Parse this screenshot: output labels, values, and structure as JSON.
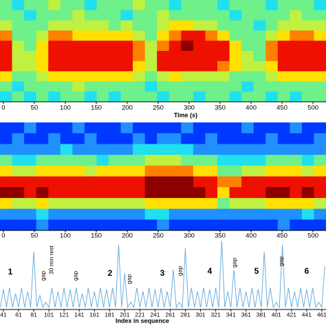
{
  "chart_data": [
    {
      "type": "heatmap",
      "colormap": "jet",
      "xlabel": "Time (s)",
      "xlim": [
        -5.5,
        521
      ],
      "xticks": [
        0,
        50,
        100,
        150,
        200,
        250,
        300,
        350,
        400,
        450,
        500
      ],
      "z": [
        [
          5,
          4,
          5,
          5,
          6,
          5,
          5,
          4,
          5,
          5,
          5,
          6,
          5,
          5,
          4,
          5,
          5,
          5,
          4,
          5,
          5,
          5,
          4,
          5,
          5,
          5,
          4
        ],
        [
          5,
          5,
          4,
          5,
          5,
          5,
          6,
          5,
          5,
          5,
          4,
          5,
          5,
          6,
          5,
          5,
          5,
          5,
          5,
          4,
          5,
          5,
          5,
          5,
          6,
          5,
          5
        ],
        [
          6,
          5,
          5,
          5,
          6,
          6,
          6,
          6,
          6,
          5,
          6,
          5,
          5,
          6,
          7,
          7,
          6,
          6,
          5,
          5,
          5,
          4,
          5,
          6,
          6,
          6,
          6
        ],
        [
          8,
          5,
          5,
          6,
          8,
          8,
          7,
          7,
          7,
          7,
          7,
          6,
          5,
          7,
          8,
          9,
          9,
          8,
          7,
          5,
          5,
          5,
          6,
          7,
          8,
          8,
          7
        ],
        [
          9,
          6,
          5,
          7,
          9,
          9,
          9,
          9,
          9,
          9,
          9,
          8,
          6,
          8,
          9,
          10,
          9,
          9,
          9,
          7,
          5,
          5,
          8,
          9,
          9,
          9,
          9
        ],
        [
          9,
          6,
          6,
          7,
          9,
          9,
          9,
          9,
          9,
          9,
          9,
          8,
          6,
          9,
          9,
          9,
          9,
          9,
          9,
          7,
          6,
          5,
          8,
          9,
          9,
          9,
          9
        ],
        [
          9,
          6,
          6,
          7,
          9,
          9,
          9,
          9,
          9,
          9,
          9,
          7,
          6,
          9,
          9,
          9,
          9,
          9,
          8,
          7,
          6,
          6,
          7,
          9,
          9,
          9,
          9
        ],
        [
          7,
          5,
          5,
          6,
          7,
          7,
          7,
          7,
          7,
          7,
          7,
          6,
          5,
          6,
          7,
          6,
          6,
          6,
          6,
          5,
          5,
          5,
          6,
          7,
          7,
          7,
          7
        ],
        [
          5,
          4,
          5,
          5,
          5,
          5,
          6,
          5,
          5,
          5,
          5,
          5,
          4,
          5,
          5,
          5,
          5,
          5,
          5,
          5,
          4,
          5,
          5,
          5,
          5,
          5,
          5
        ],
        [
          4,
          5,
          4,
          5,
          4,
          5,
          5,
          4,
          5,
          4,
          5,
          5,
          5,
          4,
          5,
          5,
          4,
          5,
          5,
          4,
          5,
          5,
          4,
          5,
          4,
          5,
          5
        ]
      ]
    },
    {
      "type": "heatmap",
      "colormap": "jet",
      "xlim": [
        -5.5,
        521
      ],
      "xticks": [
        0,
        50,
        100,
        150,
        200,
        250,
        300,
        350,
        400,
        450,
        500
      ],
      "z": [
        [
          2,
          2,
          3,
          2,
          2,
          2,
          3,
          2,
          2,
          2,
          3,
          2,
          2,
          2,
          2,
          3,
          2,
          2,
          2,
          2,
          3,
          2,
          2,
          2,
          3,
          2,
          2
        ],
        [
          2,
          3,
          2,
          2,
          3,
          2,
          2,
          3,
          2,
          2,
          2,
          3,
          2,
          3,
          3,
          2,
          2,
          3,
          2,
          2,
          2,
          2,
          3,
          2,
          2,
          2,
          3
        ],
        [
          3,
          3,
          3,
          3,
          3,
          4,
          3,
          3,
          3,
          3,
          3,
          4,
          4,
          4,
          4,
          4,
          3,
          3,
          3,
          3,
          3,
          3,
          3,
          3,
          3,
          3,
          3
        ],
        [
          5,
          4,
          4,
          5,
          5,
          5,
          5,
          5,
          4,
          5,
          5,
          5,
          6,
          6,
          6,
          5,
          5,
          5,
          4,
          4,
          4,
          4,
          5,
          5,
          5,
          4,
          5
        ],
        [
          7,
          6,
          6,
          7,
          7,
          7,
          7,
          6,
          7,
          7,
          7,
          7,
          8,
          8,
          8,
          8,
          7,
          7,
          5,
          5,
          6,
          6,
          7,
          7,
          7,
          6,
          7
        ],
        [
          9,
          9,
          9,
          9,
          9,
          9,
          9,
          9,
          9,
          9,
          9,
          9,
          10,
          10,
          10,
          10,
          9,
          9,
          8,
          8,
          9,
          9,
          9,
          9,
          9,
          9,
          9
        ],
        [
          10,
          10,
          9,
          10,
          9,
          9,
          9,
          9,
          9,
          9,
          9,
          9,
          10,
          10,
          10,
          10,
          10,
          9,
          7,
          9,
          9,
          9,
          10,
          10,
          9,
          10,
          9
        ],
        [
          7,
          6,
          6,
          7,
          6,
          6,
          6,
          6,
          6,
          6,
          6,
          6,
          7,
          7,
          7,
          7,
          7,
          7,
          5,
          6,
          6,
          6,
          7,
          7,
          7,
          7,
          6
        ],
        [
          3,
          3,
          3,
          4,
          3,
          3,
          3,
          3,
          3,
          3,
          3,
          3,
          4,
          4,
          3,
          3,
          3,
          3,
          3,
          3,
          3,
          3,
          3,
          3,
          3,
          4,
          3
        ],
        [
          2,
          2,
          2,
          3,
          2,
          2,
          2,
          2,
          2,
          2,
          2,
          2,
          2,
          3,
          2,
          2,
          2,
          2,
          2,
          2,
          2,
          2,
          2,
          3,
          2,
          2,
          2
        ]
      ]
    },
    {
      "type": "line",
      "xlabel": "Index in sequence",
      "color": "#6aaedc",
      "xlim": [
        36.5,
        466.5
      ],
      "ylim": [
        0,
        1
      ],
      "xticks": [
        41,
        61,
        81,
        101,
        121,
        141,
        161,
        181,
        201,
        221,
        241,
        261,
        281,
        301,
        321,
        341,
        361,
        381,
        401,
        421,
        441,
        461
      ],
      "x": [
        37,
        41,
        45,
        49,
        53,
        57,
        61,
        65,
        69,
        73,
        77,
        81,
        85,
        89,
        93,
        97,
        101,
        105,
        109,
        113,
        117,
        121,
        125,
        129,
        133,
        137,
        141,
        145,
        149,
        153,
        157,
        161,
        165,
        169,
        173,
        177,
        181,
        185,
        189,
        193,
        197,
        201,
        205,
        209,
        213,
        217,
        221,
        225,
        229,
        233,
        237,
        241,
        245,
        249,
        253,
        257,
        261,
        265,
        269,
        273,
        277,
        281,
        285,
        289,
        293,
        297,
        301,
        305,
        309,
        313,
        317,
        321,
        325,
        329,
        333,
        337,
        341,
        345,
        349,
        353,
        357,
        361,
        365,
        369,
        373,
        377,
        381,
        385,
        389,
        393,
        397,
        401,
        405,
        409,
        413,
        417,
        421,
        425,
        429,
        433,
        437,
        441,
        445,
        449,
        453,
        457,
        461,
        465
      ],
      "values": [
        0.03,
        0.28,
        0.03,
        0.3,
        0.03,
        0.22,
        0.03,
        0.3,
        0.03,
        0.25,
        0.03,
        0.8,
        0.03,
        0.2,
        0.03,
        0.1,
        0.03,
        0.3,
        0.03,
        0.25,
        0.03,
        0.3,
        0.03,
        0.28,
        0.03,
        0.3,
        0.03,
        0.22,
        0.03,
        0.3,
        0.03,
        0.25,
        0.03,
        0.3,
        0.03,
        0.28,
        0.03,
        0.3,
        0.03,
        0.9,
        0.03,
        0.5,
        0.03,
        0.1,
        0.03,
        0.3,
        0.03,
        0.25,
        0.03,
        0.3,
        0.03,
        0.28,
        0.03,
        0.3,
        0.03,
        0.25,
        0.03,
        0.55,
        0.03,
        0.1,
        0.03,
        0.85,
        0.03,
        0.3,
        0.03,
        0.25,
        0.03,
        0.3,
        0.03,
        0.28,
        0.03,
        0.3,
        0.03,
        0.95,
        0.03,
        0.25,
        0.03,
        0.55,
        0.03,
        0.3,
        0.03,
        0.25,
        0.03,
        0.3,
        0.03,
        0.28,
        0.03,
        0.8,
        0.03,
        0.3,
        0.03,
        0.1,
        0.03,
        0.9,
        0.03,
        0.3,
        0.03,
        0.25,
        0.03,
        0.3,
        0.03,
        0.28,
        0.03,
        0.3,
        0.03,
        0.1,
        0.03,
        0.6
      ],
      "annotations": [
        "1",
        "gap",
        "30 min rest",
        "gap",
        "2",
        "gap",
        "3",
        "gap",
        "4",
        "gap",
        "5",
        "gap",
        "6"
      ]
    }
  ]
}
